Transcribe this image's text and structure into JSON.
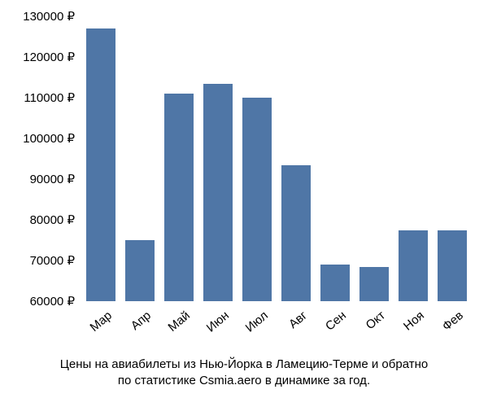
{
  "chart": {
    "type": "bar",
    "categories": [
      "Мар",
      "Апр",
      "Май",
      "Июн",
      "Июл",
      "Авг",
      "Сен",
      "Окт",
      "Ноя",
      "Фев"
    ],
    "values": [
      127000,
      75000,
      111000,
      113500,
      110000,
      93500,
      69000,
      68500,
      77500,
      77500
    ],
    "bar_color": "#4f76a6",
    "background_color": "#ffffff",
    "ylim": [
      60000,
      130000
    ],
    "yticks": [
      60000,
      70000,
      80000,
      90000,
      100000,
      110000,
      120000,
      130000
    ],
    "ytick_labels": [
      "60000 ₽",
      "70000 ₽",
      "80000 ₽",
      "90000 ₽",
      "100000 ₽",
      "110000 ₽",
      "120000 ₽",
      "130000 ₽"
    ],
    "bar_width_ratio": 0.75,
    "tick_fontsize": 15,
    "caption_fontsize": 15,
    "x_label_rotation_deg": -40,
    "caption_line1": "Цены на авиабилеты из Нью-Йорка в Ламецию-Терме и обратно",
    "caption_line2": "по статистике Csmia.aero в динамике за год."
  }
}
